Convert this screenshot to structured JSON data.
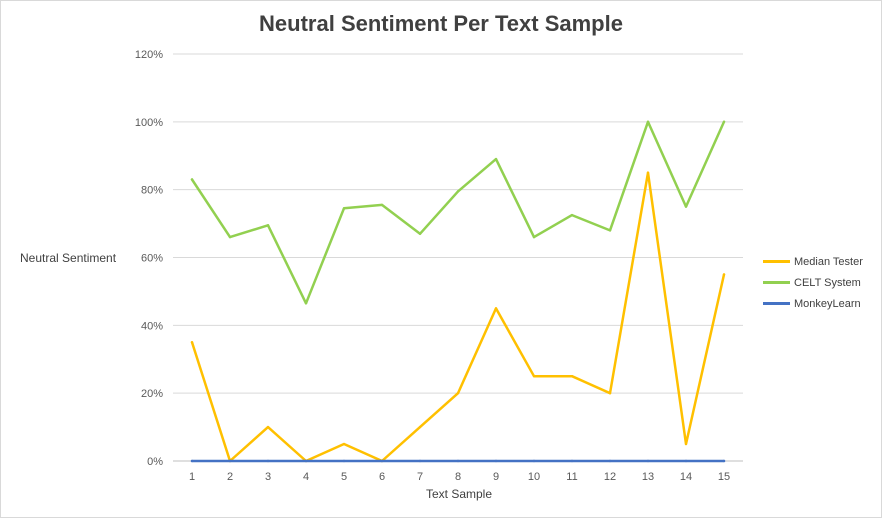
{
  "chart_data": {
    "type": "line",
    "title": "Neutral Sentiment Per Text Sample",
    "xlabel": "Text Sample",
    "ylabel": "Neutral Sentiment",
    "x": [
      1,
      2,
      3,
      4,
      5,
      6,
      7,
      8,
      9,
      10,
      11,
      12,
      13,
      14,
      15
    ],
    "ylim": [
      0,
      120
    ],
    "yticks": [
      "0%",
      "20%",
      "40%",
      "60%",
      "80%",
      "100%",
      "120%"
    ],
    "y_unit": "percent",
    "grid": true,
    "legend_position": "right",
    "series": [
      {
        "name": "Median Tester",
        "color": "#ffc000",
        "values": [
          35,
          0,
          10,
          0,
          5,
          0,
          10,
          20,
          45,
          25,
          25,
          20,
          85,
          5,
          55
        ]
      },
      {
        "name": "CELT System",
        "color": "#92d050",
        "values": [
          83,
          66,
          69.5,
          46.5,
          74.5,
          75.5,
          67,
          79.5,
          89,
          66,
          72.5,
          68,
          100,
          75,
          100
        ]
      },
      {
        "name": "MonkeyLearn",
        "color": "#4472c4",
        "values": [
          0,
          0,
          0,
          0,
          0,
          0,
          0,
          0,
          0,
          0,
          0,
          0,
          0,
          0,
          0
        ]
      }
    ]
  }
}
